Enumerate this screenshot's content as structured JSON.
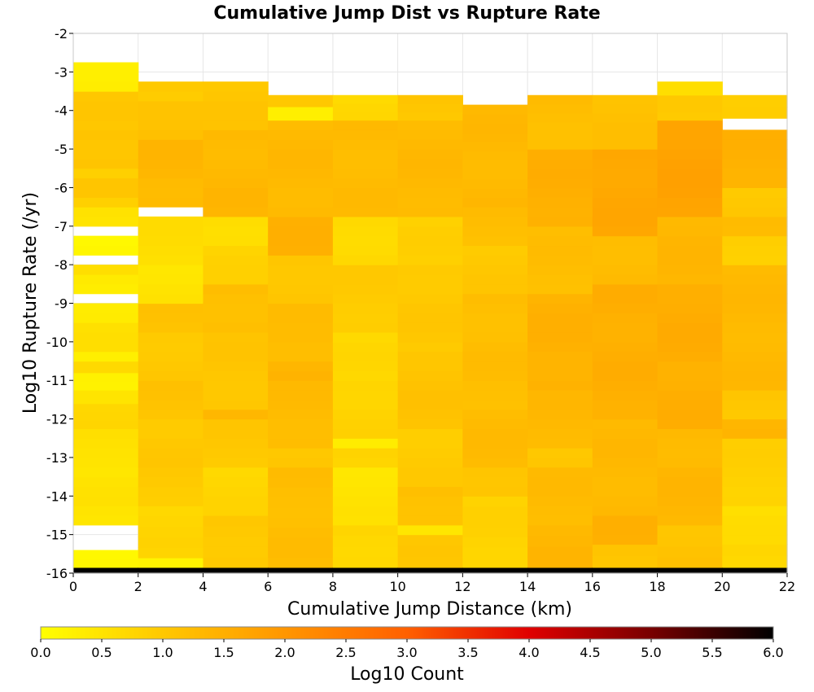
{
  "chart_data": {
    "type": "heatmap",
    "title": "Cumulative Jump Dist vs Rupture Rate",
    "xlabel": "Cumulative Jump Distance (km)",
    "ylabel": "Log10 Rupture Rate (/yr)",
    "xlim": [
      0,
      22
    ],
    "ylim": [
      -16,
      -2
    ],
    "x_ticks": [
      "0",
      "2",
      "4",
      "6",
      "8",
      "10",
      "12",
      "14",
      "16",
      "18",
      "20",
      "22"
    ],
    "y_ticks": [
      "-2",
      "-3",
      "-4",
      "-5",
      "-6",
      "-7",
      "-8",
      "-9",
      "-10",
      "-11",
      "-12",
      "-13",
      "-14",
      "-15",
      "-16"
    ],
    "x_bin_edges": [
      0,
      2,
      4,
      6,
      8,
      10,
      12,
      14,
      16,
      18,
      20,
      22
    ],
    "y_bin_size": 0.25,
    "colorbar": {
      "label": "Log10 Count",
      "range": [
        0,
        6
      ],
      "ticks": [
        "0.0",
        "0.5",
        "1.0",
        "1.5",
        "2.0",
        "2.5",
        "3.0",
        "3.5",
        "4.0",
        "4.5",
        "5.0",
        "5.5",
        "6.0"
      ],
      "colors": [
        "#ffff00",
        "#ffc800",
        "#ff9600",
        "#ff6000",
        "#e00000",
        "#780000",
        "#000000"
      ]
    },
    "columns": [
      {
        "x": [
          0,
          2
        ],
        "cells": [
          {
            "y": [
              -16.0,
              -15.85
            ],
            "v": 6.0
          },
          {
            "y": [
              -15.85,
              -15.4
            ],
            "v": 0.15
          },
          {
            "y": [
              -14.75,
              -14.25
            ],
            "v": 0.45
          },
          {
            "y": [
              -14.25,
              -13.25
            ],
            "v": 0.5
          },
          {
            "y": [
              -13.25,
              -12.25
            ],
            "v": 0.55
          },
          {
            "y": [
              -12.25,
              -11.6
            ],
            "v": 0.7
          },
          {
            "y": [
              -11.6,
              -11.25
            ],
            "v": 0.5
          },
          {
            "y": [
              -11.25,
              -10.8
            ],
            "v": 0.3
          },
          {
            "y": [
              -10.8,
              -10.5
            ],
            "v": 0.7
          },
          {
            "y": [
              -10.5,
              -10.25
            ],
            "v": 0.3
          },
          {
            "y": [
              -10.25,
              -9.5
            ],
            "v": 0.55
          },
          {
            "y": [
              -9.5,
              -9.0
            ],
            "v": 0.4
          },
          {
            "y": [
              -8.75,
              -8.25
            ],
            "v": 0.35
          },
          {
            "y": [
              -8.25,
              -8.0
            ],
            "v": 0.6
          },
          {
            "y": [
              -7.75,
              -7.25
            ],
            "v": 0.15
          },
          {
            "y": [
              -7.0,
              -6.5
            ],
            "v": 0.55
          },
          {
            "y": [
              -6.5,
              -6.25
            ],
            "v": 0.85
          },
          {
            "y": [
              -6.25,
              -5.75
            ],
            "v": 1.0
          },
          {
            "y": [
              -5.75,
              -5.5
            ],
            "v": 0.85
          },
          {
            "y": [
              -5.5,
              -4.5
            ],
            "v": 1.1
          },
          {
            "y": [
              -4.5,
              -3.5
            ],
            "v": 1.0
          },
          {
            "y": [
              -3.5,
              -2.75
            ],
            "v": 0.35
          }
        ]
      },
      {
        "x": [
          2,
          4
        ],
        "cells": [
          {
            "y": [
              -16.0,
              -15.85
            ],
            "v": 6.0
          },
          {
            "y": [
              -15.85,
              -15.6
            ],
            "v": 0.2
          },
          {
            "y": [
              -15.6,
              -14.25
            ],
            "v": 0.75
          },
          {
            "y": [
              -14.25,
              -13.25
            ],
            "v": 0.95
          },
          {
            "y": [
              -13.25,
              -12.0
            ],
            "v": 1.0
          },
          {
            "y": [
              -12.0,
              -11.0
            ],
            "v": 1.1
          },
          {
            "y": [
              -11.0,
              -9.75
            ],
            "v": 1.0
          },
          {
            "y": [
              -9.75,
              -9.0
            ],
            "v": 1.1
          },
          {
            "y": [
              -9.0,
              -8.0
            ],
            "v": 0.5
          },
          {
            "y": [
              -8.0,
              -6.75
            ],
            "v": 0.6
          },
          {
            "y": [
              -6.5,
              -5.75
            ],
            "v": 1.3
          },
          {
            "y": [
              -5.75,
              -4.75
            ],
            "v": 1.35
          },
          {
            "y": [
              -4.75,
              -3.75
            ],
            "v": 1.15
          },
          {
            "y": [
              -3.75,
              -3.25
            ],
            "v": 0.95
          }
        ]
      },
      {
        "x": [
          4,
          6
        ],
        "cells": [
          {
            "y": [
              -16.0,
              -15.85
            ],
            "v": 6.0
          },
          {
            "y": [
              -15.85,
              -14.5
            ],
            "v": 1.0
          },
          {
            "y": [
              -14.5,
              -13.25
            ],
            "v": 0.75
          },
          {
            "y": [
              -13.25,
              -12.0
            ],
            "v": 1.0
          },
          {
            "y": [
              -12.0,
              -11.75
            ],
            "v": 1.35
          },
          {
            "y": [
              -11.75,
              -9.75
            ],
            "v": 1.05
          },
          {
            "y": [
              -9.75,
              -8.5
            ],
            "v": 1.2
          },
          {
            "y": [
              -8.5,
              -7.5
            ],
            "v": 0.8
          },
          {
            "y": [
              -7.5,
              -6.75
            ],
            "v": 0.65
          },
          {
            "y": [
              -6.75,
              -6.0
            ],
            "v": 1.35
          },
          {
            "y": [
              -6.0,
              -4.5
            ],
            "v": 1.3
          },
          {
            "y": [
              -4.5,
              -3.25
            ],
            "v": 1.05
          }
        ]
      },
      {
        "x": [
          6,
          8
        ],
        "cells": [
          {
            "y": [
              -16.0,
              -15.85
            ],
            "v": 6.0
          },
          {
            "y": [
              -15.85,
              -13.25
            ],
            "v": 1.2
          },
          {
            "y": [
              -13.25,
              -12.75
            ],
            "v": 1.0
          },
          {
            "y": [
              -12.75,
              -11.0
            ],
            "v": 1.25
          },
          {
            "y": [
              -11.0,
              -10.5
            ],
            "v": 1.4
          },
          {
            "y": [
              -10.5,
              -9.75
            ],
            "v": 1.25
          },
          {
            "y": [
              -9.75,
              -9.0
            ],
            "v": 1.2
          },
          {
            "y": [
              -9.0,
              -7.75
            ],
            "v": 1.05
          },
          {
            "y": [
              -7.75,
              -6.75
            ],
            "v": 1.45
          },
          {
            "y": [
              -6.75,
              -4.25
            ],
            "v": 1.3
          },
          {
            "y": [
              -4.25,
              -3.9
            ],
            "v": 0.3
          },
          {
            "y": [
              -3.9,
              -3.6
            ],
            "v": 1.0
          }
        ]
      },
      {
        "x": [
          8,
          10
        ],
        "cells": [
          {
            "y": [
              -16.0,
              -15.85
            ],
            "v": 6.0
          },
          {
            "y": [
              -15.85,
              -14.75
            ],
            "v": 0.75
          },
          {
            "y": [
              -14.75,
              -13.25
            ],
            "v": 0.5
          },
          {
            "y": [
              -13.25,
              -12.75
            ],
            "v": 0.8
          },
          {
            "y": [
              -12.75,
              -12.5
            ],
            "v": 0.35
          },
          {
            "y": [
              -12.5,
              -11.0
            ],
            "v": 0.8
          },
          {
            "y": [
              -11.0,
              -9.75
            ],
            "v": 0.7
          },
          {
            "y": [
              -9.75,
              -8.0
            ],
            "v": 0.95
          },
          {
            "y": [
              -8.0,
              -6.75
            ],
            "v": 0.7
          },
          {
            "y": [
              -6.75,
              -4.25
            ],
            "v": 1.25
          },
          {
            "y": [
              -4.25,
              -3.6
            ],
            "v": 0.7
          }
        ]
      },
      {
        "x": [
          10,
          12
        ],
        "cells": [
          {
            "y": [
              -16.0,
              -15.85
            ],
            "v": 6.0
          },
          {
            "y": [
              -15.85,
              -15.0
            ],
            "v": 1.0
          },
          {
            "y": [
              -15.0,
              -14.75
            ],
            "v": 0.45
          },
          {
            "y": [
              -14.75,
              -13.75
            ],
            "v": 1.15
          },
          {
            "y": [
              -13.75,
              -12.25
            ],
            "v": 0.95
          },
          {
            "y": [
              -12.25,
              -10.25
            ],
            "v": 1.1
          },
          {
            "y": [
              -10.25,
              -8.0
            ],
            "v": 1.0
          },
          {
            "y": [
              -8.0,
              -6.75
            ],
            "v": 0.85
          },
          {
            "y": [
              -6.75,
              -4.25
            ],
            "v": 1.3
          },
          {
            "y": [
              -4.25,
              -3.6
            ],
            "v": 1.05
          }
        ]
      },
      {
        "x": [
          12,
          14
        ],
        "cells": [
          {
            "y": [
              -16.0,
              -15.85
            ],
            "v": 6.0
          },
          {
            "y": [
              -15.85,
              -14.0
            ],
            "v": 0.8
          },
          {
            "y": [
              -14.0,
              -13.25
            ],
            "v": 1.1
          },
          {
            "y": [
              -13.25,
              -11.75
            ],
            "v": 1.25
          },
          {
            "y": [
              -11.75,
              -9.75
            ],
            "v": 1.2
          },
          {
            "y": [
              -9.75,
              -8.75
            ],
            "v": 1.2
          },
          {
            "y": [
              -8.75,
              -7.5
            ],
            "v": 1.0
          },
          {
            "y": [
              -7.5,
              -6.5
            ],
            "v": 1.2
          },
          {
            "y": [
              -6.5,
              -3.85
            ],
            "v": 1.3
          }
        ]
      },
      {
        "x": [
          14,
          16
        ],
        "cells": [
          {
            "y": [
              -16.0,
              -15.85
            ],
            "v": 6.0
          },
          {
            "y": [
              -15.85,
              -14.75
            ],
            "v": 1.35
          },
          {
            "y": [
              -14.75,
              -13.25
            ],
            "v": 1.25
          },
          {
            "y": [
              -13.25,
              -12.75
            ],
            "v": 1.05
          },
          {
            "y": [
              -12.75,
              -11.25
            ],
            "v": 1.3
          },
          {
            "y": [
              -11.25,
              -8.75
            ],
            "v": 1.45
          },
          {
            "y": [
              -8.75,
              -7.0
            ],
            "v": 1.2
          },
          {
            "y": [
              -7.0,
              -5.0
            ],
            "v": 1.5
          },
          {
            "y": [
              -5.0,
              -3.6
            ],
            "v": 1.2
          }
        ]
      },
      {
        "x": [
          16,
          18
        ],
        "cells": [
          {
            "y": [
              -16.0,
              -15.85
            ],
            "v": 6.0
          },
          {
            "y": [
              -15.85,
              -15.25
            ],
            "v": 1.1
          },
          {
            "y": [
              -15.25,
              -14.5
            ],
            "v": 1.45
          },
          {
            "y": [
              -14.5,
              -12.0
            ],
            "v": 1.3
          },
          {
            "y": [
              -12.0,
              -8.5
            ],
            "v": 1.5
          },
          {
            "y": [
              -8.5,
              -7.25
            ],
            "v": 1.25
          },
          {
            "y": [
              -7.25,
              -5.0
            ],
            "v": 1.65
          },
          {
            "y": [
              -5.0,
              -3.6
            ],
            "v": 1.15
          }
        ]
      },
      {
        "x": [
          18,
          20
        ],
        "cells": [
          {
            "y": [
              -16.0,
              -15.85
            ],
            "v": 6.0
          },
          {
            "y": [
              -15.85,
              -14.75
            ],
            "v": 1.1
          },
          {
            "y": [
              -14.75,
              -13.25
            ],
            "v": 1.35
          },
          {
            "y": [
              -13.25,
              -12.25
            ],
            "v": 1.3
          },
          {
            "y": [
              -12.25,
              -10.5
            ],
            "v": 1.5
          },
          {
            "y": [
              -10.5,
              -8.5
            ],
            "v": 1.55
          },
          {
            "y": [
              -8.5,
              -6.75
            ],
            "v": 1.35
          },
          {
            "y": [
              -6.75,
              -4.25
            ],
            "v": 1.75
          },
          {
            "y": [
              -4.25,
              -3.6
            ],
            "v": 0.95
          },
          {
            "y": [
              -3.6,
              -3.25
            ],
            "v": 0.6
          }
        ]
      },
      {
        "x": [
          20,
          22
        ],
        "cells": [
          {
            "y": [
              -16.0,
              -15.85
            ],
            "v": 6.0
          },
          {
            "y": [
              -15.85,
              -15.25
            ],
            "v": 0.75
          },
          {
            "y": [
              -15.25,
              -14.25
            ],
            "v": 0.6
          },
          {
            "y": [
              -14.25,
              -12.5
            ],
            "v": 0.85
          },
          {
            "y": [
              -12.5,
              -12.0
            ],
            "v": 1.4
          },
          {
            "y": [
              -12.0,
              -11.25
            ],
            "v": 1.05
          },
          {
            "y": [
              -11.25,
              -8.0
            ],
            "v": 1.3
          },
          {
            "y": [
              -8.0,
              -7.25
            ],
            "v": 0.9
          },
          {
            "y": [
              -7.25,
              -6.75
            ],
            "v": 1.2
          },
          {
            "y": [
              -6.75,
              -6.0
            ],
            "v": 1.0
          },
          {
            "y": [
              -6.0,
              -4.5
            ],
            "v": 1.45
          },
          {
            "y": [
              -4.2,
              -3.6
            ],
            "v": 0.95
          }
        ]
      }
    ]
  }
}
